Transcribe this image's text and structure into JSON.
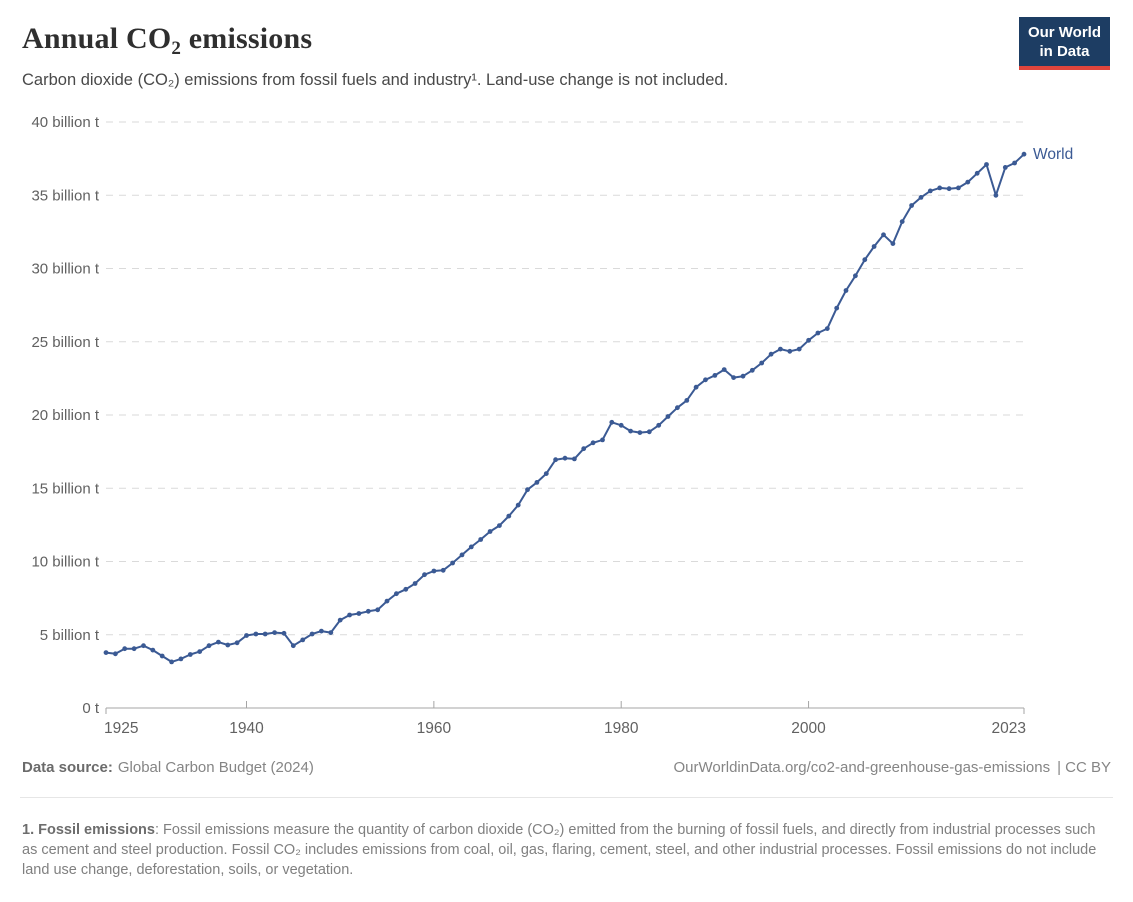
{
  "header": {
    "title_prefix": "Annual CO",
    "title_sub": "2",
    "title_suffix": " emissions",
    "subtitle": "Carbon dioxide (CO₂) emissions from fossil fuels and industry¹. Land-use change is not included.",
    "logo": {
      "line1": "Our World",
      "line2": "in Data",
      "bg_color": "#1d3d63",
      "accent_color": "#e0453c"
    }
  },
  "chart_data": {
    "type": "line",
    "title": "Annual CO₂ emissions",
    "ylabel": "",
    "xlabel": "",
    "unit": "billion t",
    "grid": true,
    "ylim": [
      0,
      40
    ],
    "y_ticks": [
      0,
      5,
      10,
      15,
      20,
      25,
      30,
      35,
      40
    ],
    "y_tick_suffix": " billion t",
    "y_tick_zero_label": "0 t",
    "x_ticks": [
      1925,
      1940,
      1960,
      1980,
      2000,
      2023
    ],
    "entity_label": "World",
    "line_color": "#3b5a94",
    "grid_color": "#dadada",
    "axis_color": "#a5a5a5",
    "tick_label_color": "#616161",
    "x": [
      1925,
      1926,
      1927,
      1928,
      1929,
      1930,
      1931,
      1932,
      1933,
      1934,
      1935,
      1936,
      1937,
      1938,
      1939,
      1940,
      1941,
      1942,
      1943,
      1944,
      1945,
      1946,
      1947,
      1948,
      1949,
      1950,
      1951,
      1952,
      1953,
      1954,
      1955,
      1956,
      1957,
      1958,
      1959,
      1960,
      1961,
      1962,
      1963,
      1964,
      1965,
      1966,
      1967,
      1968,
      1969,
      1970,
      1971,
      1972,
      1973,
      1974,
      1975,
      1976,
      1977,
      1978,
      1979,
      1980,
      1981,
      1982,
      1983,
      1984,
      1985,
      1986,
      1987,
      1988,
      1989,
      1990,
      1991,
      1992,
      1993,
      1994,
      1995,
      1996,
      1997,
      1998,
      1999,
      2000,
      2001,
      2002,
      2003,
      2004,
      2005,
      2006,
      2007,
      2008,
      2009,
      2010,
      2011,
      2012,
      2013,
      2014,
      2015,
      2016,
      2017,
      2018,
      2019,
      2020,
      2021,
      2022,
      2023
    ],
    "series": [
      {
        "name": "World",
        "values": [
          3.78,
          3.7,
          4.05,
          4.05,
          4.25,
          3.95,
          3.55,
          3.15,
          3.35,
          3.65,
          3.85,
          4.25,
          4.5,
          4.3,
          4.45,
          4.95,
          5.05,
          5.05,
          5.15,
          5.1,
          4.25,
          4.65,
          5.05,
          5.25,
          5.15,
          6.0,
          6.35,
          6.45,
          6.6,
          6.7,
          7.3,
          7.8,
          8.1,
          8.5,
          9.1,
          9.35,
          9.4,
          9.9,
          10.45,
          11.0,
          11.5,
          12.05,
          12.45,
          13.1,
          13.85,
          14.9,
          15.4,
          16.0,
          16.95,
          17.05,
          17.0,
          17.7,
          18.1,
          18.3,
          19.5,
          19.3,
          18.9,
          18.8,
          18.85,
          19.3,
          19.9,
          20.5,
          21.0,
          21.9,
          22.4,
          22.7,
          23.1,
          22.55,
          22.65,
          23.05,
          23.55,
          24.15,
          24.5,
          24.35,
          24.5,
          25.1,
          25.6,
          25.9,
          27.3,
          28.5,
          29.5,
          30.6,
          31.5,
          32.3,
          31.7,
          33.2,
          34.3,
          34.85,
          35.3,
          35.5,
          35.45,
          35.5,
          35.9,
          36.5,
          37.1,
          35.0,
          36.9,
          37.2,
          37.8
        ]
      }
    ]
  },
  "footer": {
    "source_label": "Data source:",
    "source_value": "Global Carbon Budget (2024)",
    "url": "OurWorldinData.org/co2-and-greenhouse-gas-emissions",
    "license": "| CC BY"
  },
  "footnote": {
    "term": "1. Fossil emissions",
    "text": ": Fossil emissions measure the quantity of carbon dioxide (CO₂) emitted from the burning of fossil fuels, and directly from industrial processes such as cement and steel production. Fossil CO₂ includes emissions from coal, oil, gas, flaring, cement, steel, and other industrial processes. Fossil emissions do not include land use change, deforestation, soils, or vegetation."
  }
}
